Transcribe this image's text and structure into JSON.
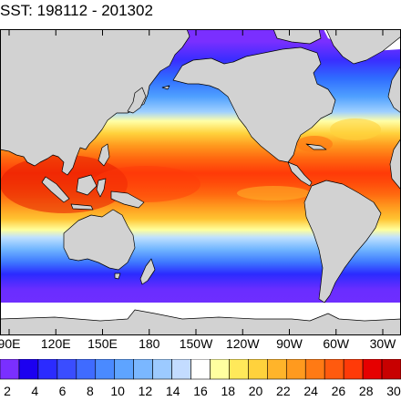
{
  "title": "SST: 198112 - 201302",
  "map": {
    "projection": "cylindrical-equidistant",
    "lon_range": [
      62,
      240
    ],
    "lat_range": [
      -80,
      88
    ],
    "land_color": "#d2d2d2",
    "ice_color": "#ffffff",
    "coastline_color": "#000000",
    "frame_color": "#000000",
    "field": "sea-surface-temperature",
    "longitude_labels": [
      "90E",
      "120E",
      "150E",
      "180",
      "150W",
      "120W",
      "90W",
      "60W",
      "30W"
    ],
    "longitude_ticks_deg": [
      90,
      120,
      150,
      180,
      210,
      240,
      270,
      300,
      330
    ]
  },
  "colorbar": {
    "labels": [
      "2",
      "4",
      "6",
      "8",
      "10",
      "12",
      "14",
      "16",
      "18",
      "20",
      "22",
      "24",
      "26",
      "28",
      "30"
    ],
    "levels": [
      2,
      4,
      6,
      8,
      10,
      12,
      14,
      16,
      18,
      20,
      22,
      24,
      26,
      28,
      30
    ],
    "colors": [
      "#7a2fff",
      "#1c00f0",
      "#2b2bff",
      "#3a4dff",
      "#3f6bff",
      "#4a8aff",
      "#5ea4ff",
      "#7ab7ff",
      "#9ccaff",
      "#c3dcff",
      "#ffffff",
      "#ffffa0",
      "#ffe95a",
      "#ffd23c",
      "#ffb42a",
      "#ff9a1e",
      "#ff7a14",
      "#ff5a0e",
      "#ff3a08",
      "#e60000",
      "#c80000"
    ]
  }
}
